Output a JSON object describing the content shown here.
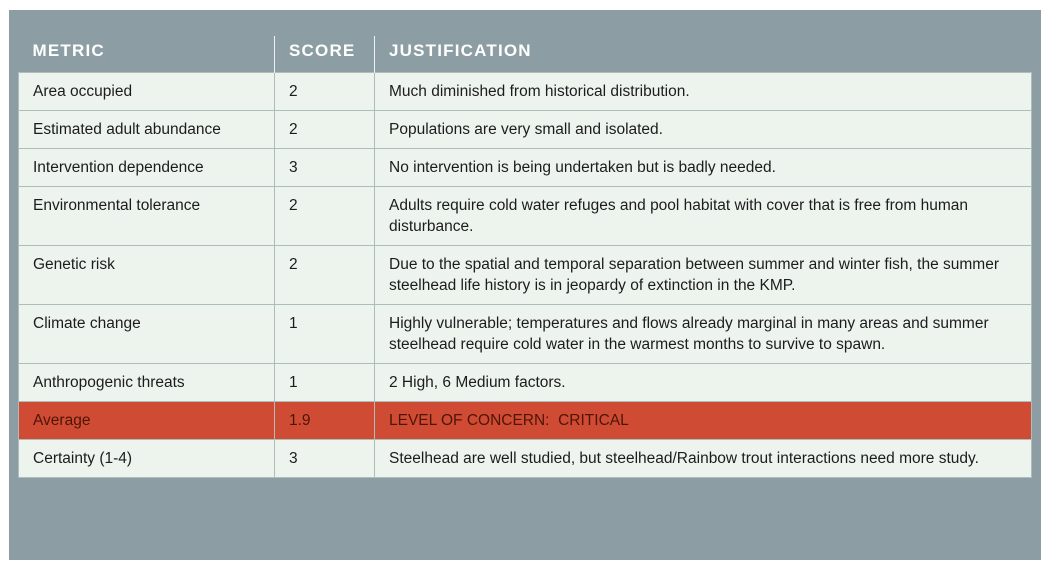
{
  "table": {
    "columns": {
      "metric": "METRIC",
      "score": "SCORE",
      "justification": "JUSTIFICATION"
    },
    "rows": [
      {
        "metric": "Area occupied",
        "score": "2",
        "justification": "Much diminished from historical distribution.",
        "highlight": false
      },
      {
        "metric": "Estimated adult abundance",
        "score": "2",
        "justification": "Populations are very small and isolated.",
        "highlight": false
      },
      {
        "metric": "Intervention dependence",
        "score": "3",
        "justification": "No intervention is being undertaken but is badly needed.",
        "highlight": false
      },
      {
        "metric": "Environmental tolerance",
        "score": "2",
        "justification": "Adults require cold water refuges and pool habitat with cover that is free from human disturbance.",
        "highlight": false
      },
      {
        "metric": "Genetic risk",
        "score": "2",
        "justification": "Due to the spatial and temporal separation between summer and winter fish, the summer steelhead life history is in jeopardy of extinction in the KMP.",
        "highlight": false
      },
      {
        "metric": "Climate change",
        "score": "1",
        "justification": "Highly vulnerable; temperatures and flows already marginal in many areas and summer steelhead require cold water in the warmest months to survive to spawn.",
        "highlight": false
      },
      {
        "metric": "Anthropogenic threats",
        "score": "1",
        "justification": "2 High, 6 Medium factors.",
        "highlight": false
      },
      {
        "metric": "Average",
        "score": "1.9",
        "justification": "LEVEL OF CONCERN:  CRITICAL",
        "highlight": true
      },
      {
        "metric": "Certainty (1-4)",
        "score": "3",
        "justification": "Steelhead are well studied, but steelhead/Rainbow trout interactions need more study.",
        "highlight": false
      }
    ],
    "colors": {
      "frame": "#8C9EA3",
      "header_text": "#FFFFFF",
      "row_bg": "#EDF4EE",
      "border": "#ADBDBA",
      "highlight_bg": "#D04B33",
      "highlight_text": "#4D1508",
      "body_text": "#1C1C1C"
    }
  }
}
